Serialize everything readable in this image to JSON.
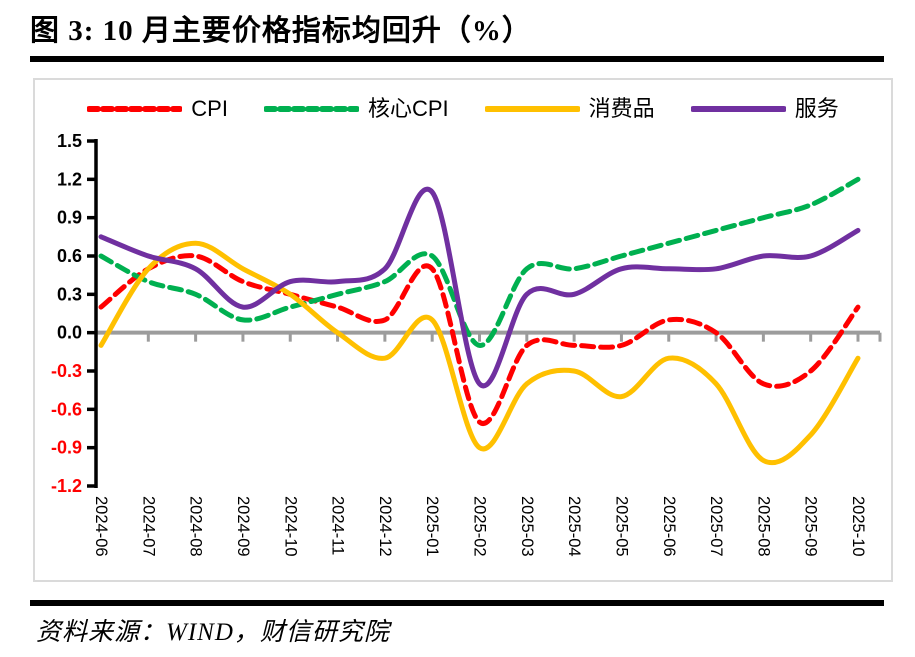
{
  "title": "图 3:  10 月主要价格指标均回升（%）",
  "source": "资料来源：WIND，财信研究院",
  "colors": {
    "cpi_red": "#FF0000",
    "core_green": "#00B050",
    "goods_gold": "#FFC000",
    "services_purple": "#7030A0",
    "zero_axis_gray": "#9c9c9c",
    "value_axis_black": "#000000",
    "negative_tick_red": "#FF0000",
    "frame_border_gray": "#dadada",
    "divider_black": "#000000"
  },
  "chart_data": {
    "type": "line",
    "title": "图 3: 10 月主要价格指标均回升（%）",
    "xlabel": "",
    "ylabel": "",
    "x": [
      "2024-06",
      "2024-07",
      "2024-08",
      "2024-09",
      "2024-10",
      "2024-11",
      "2024-12",
      "2025-01",
      "2025-02",
      "2025-03",
      "2025-04",
      "2025-05",
      "2025-06",
      "2025-07",
      "2025-08",
      "2025-09",
      "2025-10"
    ],
    "series": [
      {
        "name": "CPI",
        "color": "#FF0000",
        "dashed": true,
        "values": [
          0.2,
          0.5,
          0.6,
          0.4,
          0.3,
          0.2,
          0.1,
          0.5,
          -0.7,
          -0.1,
          -0.1,
          -0.1,
          0.1,
          0.0,
          -0.4,
          -0.3,
          0.2
        ]
      },
      {
        "name": "核心CPI",
        "color": "#00B050",
        "dashed": true,
        "values": [
          0.6,
          0.4,
          0.3,
          0.1,
          0.2,
          0.3,
          0.4,
          0.6,
          -0.1,
          0.5,
          0.5,
          0.6,
          0.7,
          0.8,
          0.9,
          1.0,
          1.2
        ]
      },
      {
        "name": "消费品",
        "color": "#FFC000",
        "dashed": false,
        "values": [
          -0.1,
          0.5,
          0.7,
          0.5,
          0.3,
          0.0,
          -0.2,
          0.1,
          -0.9,
          -0.4,
          -0.3,
          -0.5,
          -0.2,
          -0.4,
          -1.0,
          -0.8,
          -0.2
        ]
      },
      {
        "name": "服务",
        "color": "#7030A0",
        "dashed": false,
        "values": [
          0.75,
          0.6,
          0.5,
          0.2,
          0.4,
          0.4,
          0.5,
          1.1,
          -0.4,
          0.3,
          0.3,
          0.5,
          0.5,
          0.5,
          0.6,
          0.6,
          0.8
        ]
      }
    ],
    "ylim": [
      -1.2,
      1.5
    ],
    "ytick_step": 0.3,
    "ytick_labels": [
      "1.5",
      "1.2",
      "0.9",
      "0.6",
      "0.3",
      "0.0",
      "-0.3",
      "-0.6",
      "-0.9",
      "-1.2"
    ],
    "grid": false,
    "legend_position": "top",
    "line_smoothing": true,
    "negative_tick_label_color": "#FF0000",
    "positive_tick_label_color": "#000000"
  }
}
